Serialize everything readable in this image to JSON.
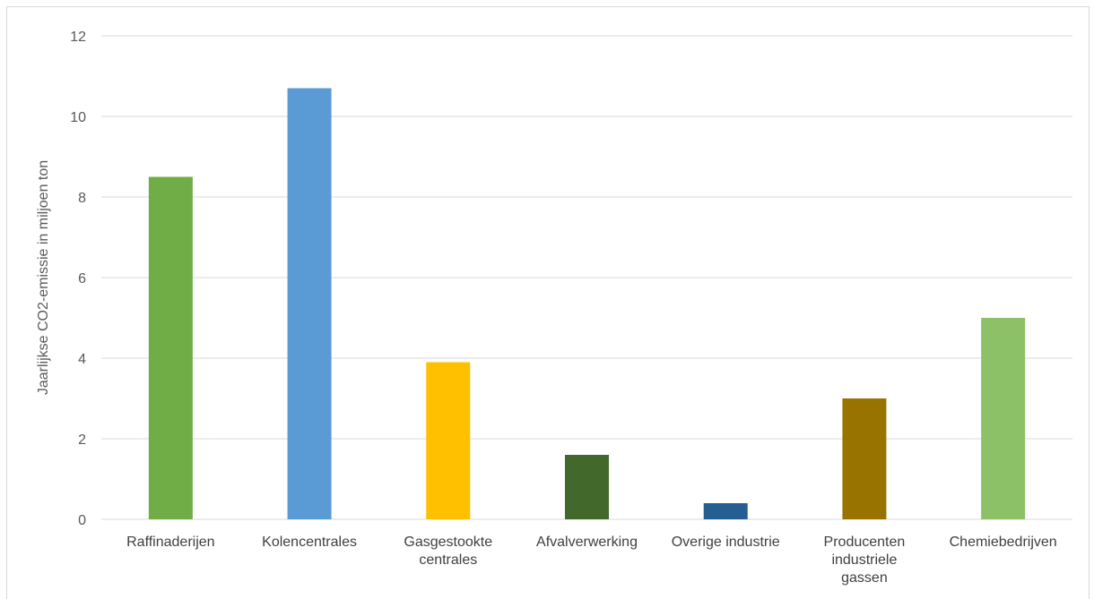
{
  "chart_data": {
    "type": "bar",
    "title": "",
    "xlabel": "",
    "ylabel": "Jaarlijkse CO2-emissie in miljoen ton",
    "ylim": [
      0,
      12
    ],
    "yticks": [
      "0",
      "2",
      "4",
      "6",
      "8",
      "10",
      "12"
    ],
    "grid": true,
    "categories": [
      [
        "Raffinaderijen"
      ],
      [
        "Kolencentrales"
      ],
      [
        "Gasgestookte",
        "centrales"
      ],
      [
        "Afvalverwerking"
      ],
      [
        "Overige industrie"
      ],
      [
        "Producenten",
        "industriele",
        "gassen"
      ],
      [
        "Chemiebedrijven"
      ]
    ],
    "values": [
      8.5,
      10.7,
      3.9,
      1.6,
      0.4,
      3.0,
      5.0
    ],
    "colors": [
      "#70ad47",
      "#5b9bd5",
      "#ffc000",
      "#43682b",
      "#255e91",
      "#997300",
      "#8cc168"
    ]
  }
}
